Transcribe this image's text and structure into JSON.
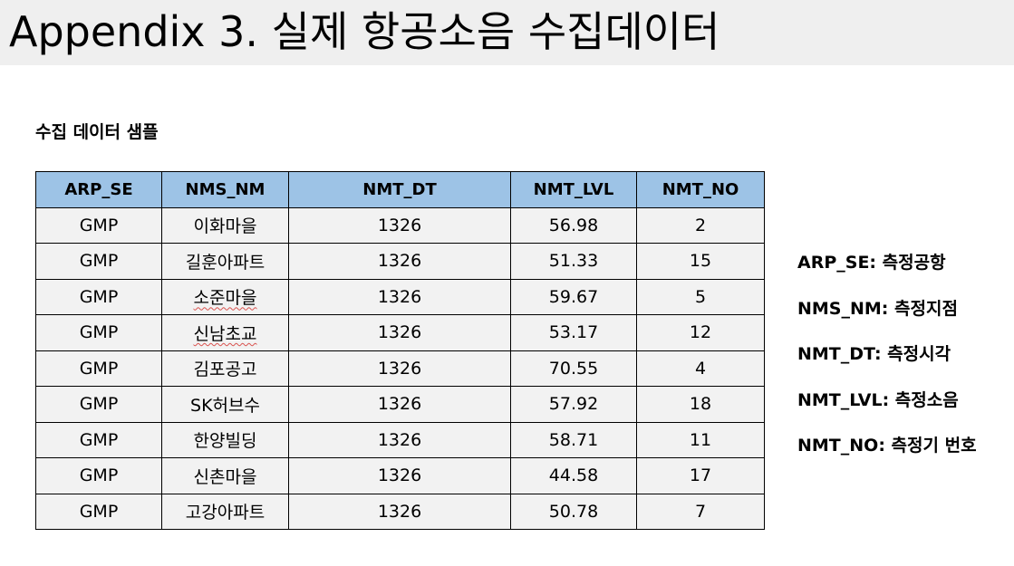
{
  "title": "Appendix 3. 실제 항공소음 수집데이터",
  "subtitle": "수집 데이터 샘플",
  "table": {
    "headers": [
      "ARP_SE",
      "NMS_NM",
      "NMT_DT",
      "NMT_LVL",
      "NMT_NO"
    ],
    "rows": [
      [
        "GMP",
        "이화마을",
        "1326",
        "56.98",
        "2"
      ],
      [
        "GMP",
        "길훈아파트",
        "1326",
        "51.33",
        "15"
      ],
      [
        "GMP",
        "소준마을",
        "1326",
        "59.67",
        "5"
      ],
      [
        "GMP",
        "신남초교",
        "1326",
        "53.17",
        "12"
      ],
      [
        "GMP",
        "김포공고",
        "1326",
        "70.55",
        "4"
      ],
      [
        "GMP",
        "SK허브수",
        "1326",
        "57.92",
        "18"
      ],
      [
        "GMP",
        "한양빌딩",
        "1326",
        "58.71",
        "11"
      ],
      [
        "GMP",
        "신촌마을",
        "1326",
        "44.58",
        "17"
      ],
      [
        "GMP",
        "고강아파트",
        "1326",
        "50.78",
        "7"
      ]
    ]
  },
  "legend": [
    "ARP_SE: 측정공항",
    "NMS_NM: 측정지점",
    "NMT_DT: 측정시각",
    "NMT_LVL: 측정소음",
    "NMT_NO: 측정기 번호"
  ],
  "colors": {
    "title_bar": "#efefef",
    "header_fill": "#9dc3e6",
    "cell_fill": "#f2f2f2",
    "border": "#000000"
  }
}
